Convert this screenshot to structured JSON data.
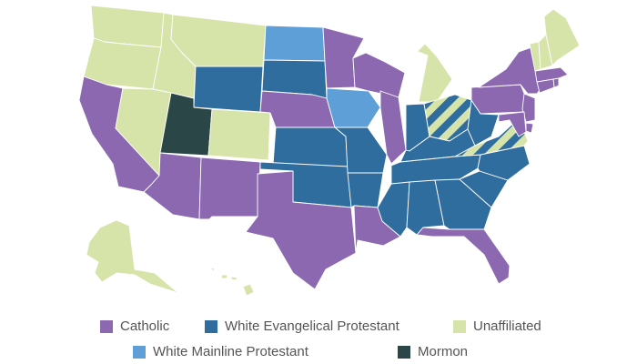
{
  "legend": {
    "items": [
      {
        "key": "catholic",
        "label": "Catholic",
        "color": "#8b68b0"
      },
      {
        "key": "evangelical",
        "label": "White Evangelical Protestant",
        "color": "#2f6d9e"
      },
      {
        "key": "unaffiliated",
        "label": "Unaffiliated",
        "color": "#d6e3a9"
      },
      {
        "key": "mainline",
        "label": "White Mainline Protestant",
        "color": "#5d9fd6"
      },
      {
        "key": "mormon",
        "label": "Mormon",
        "color": "#2b4646"
      }
    ]
  },
  "states": [
    {
      "name": "washington",
      "group": "unaffiliated"
    },
    {
      "name": "oregon",
      "group": "unaffiliated"
    },
    {
      "name": "california",
      "group": "catholic"
    },
    {
      "name": "idaho",
      "group": "unaffiliated"
    },
    {
      "name": "nevada",
      "group": "unaffiliated"
    },
    {
      "name": "montana",
      "group": "unaffiliated"
    },
    {
      "name": "wyoming",
      "group": "evangelical"
    },
    {
      "name": "utah",
      "group": "mormon"
    },
    {
      "name": "colorado",
      "group": "unaffiliated"
    },
    {
      "name": "arizona",
      "group": "catholic"
    },
    {
      "name": "new-mexico",
      "group": "catholic"
    },
    {
      "name": "north-dakota",
      "group": "mainline"
    },
    {
      "name": "south-dakota",
      "group": "evangelical"
    },
    {
      "name": "nebraska",
      "group": "catholic"
    },
    {
      "name": "kansas",
      "group": "evangelical"
    },
    {
      "name": "oklahoma",
      "group": "evangelical"
    },
    {
      "name": "texas",
      "group": "catholic"
    },
    {
      "name": "minnesota",
      "group": "catholic"
    },
    {
      "name": "iowa",
      "group": "mainline"
    },
    {
      "name": "missouri",
      "group": "evangelical"
    },
    {
      "name": "arkansas",
      "group": "evangelical"
    },
    {
      "name": "louisiana",
      "group": "catholic"
    },
    {
      "name": "wisconsin",
      "group": "catholic"
    },
    {
      "name": "illinois",
      "group": "catholic"
    },
    {
      "name": "michigan",
      "group": "unaffiliated"
    },
    {
      "name": "indiana",
      "group": "evangelical"
    },
    {
      "name": "ohio",
      "group": "unaffiliated-evangelical-stripes"
    },
    {
      "name": "kentucky",
      "group": "evangelical"
    },
    {
      "name": "tennessee",
      "group": "evangelical"
    },
    {
      "name": "mississippi",
      "group": "evangelical"
    },
    {
      "name": "alabama",
      "group": "evangelical"
    },
    {
      "name": "georgia",
      "group": "evangelical"
    },
    {
      "name": "florida",
      "group": "catholic"
    },
    {
      "name": "south-carolina",
      "group": "evangelical"
    },
    {
      "name": "north-carolina",
      "group": "evangelical"
    },
    {
      "name": "virginia",
      "group": "unaffiliated-evangelical-stripes"
    },
    {
      "name": "west-virginia",
      "group": "evangelical"
    },
    {
      "name": "pennsylvania",
      "group": "catholic"
    },
    {
      "name": "new-york",
      "group": "catholic"
    },
    {
      "name": "new-jersey",
      "group": "catholic"
    },
    {
      "name": "delaware",
      "group": "catholic"
    },
    {
      "name": "maryland",
      "group": "catholic"
    },
    {
      "name": "connecticut",
      "group": "catholic"
    },
    {
      "name": "rhode-island",
      "group": "catholic"
    },
    {
      "name": "massachusetts",
      "group": "catholic"
    },
    {
      "name": "vermont",
      "group": "unaffiliated"
    },
    {
      "name": "new-hampshire",
      "group": "unaffiliated"
    },
    {
      "name": "maine",
      "group": "unaffiliated"
    },
    {
      "name": "alaska",
      "group": "unaffiliated"
    },
    {
      "name": "hawaii",
      "group": "unaffiliated"
    }
  ]
}
